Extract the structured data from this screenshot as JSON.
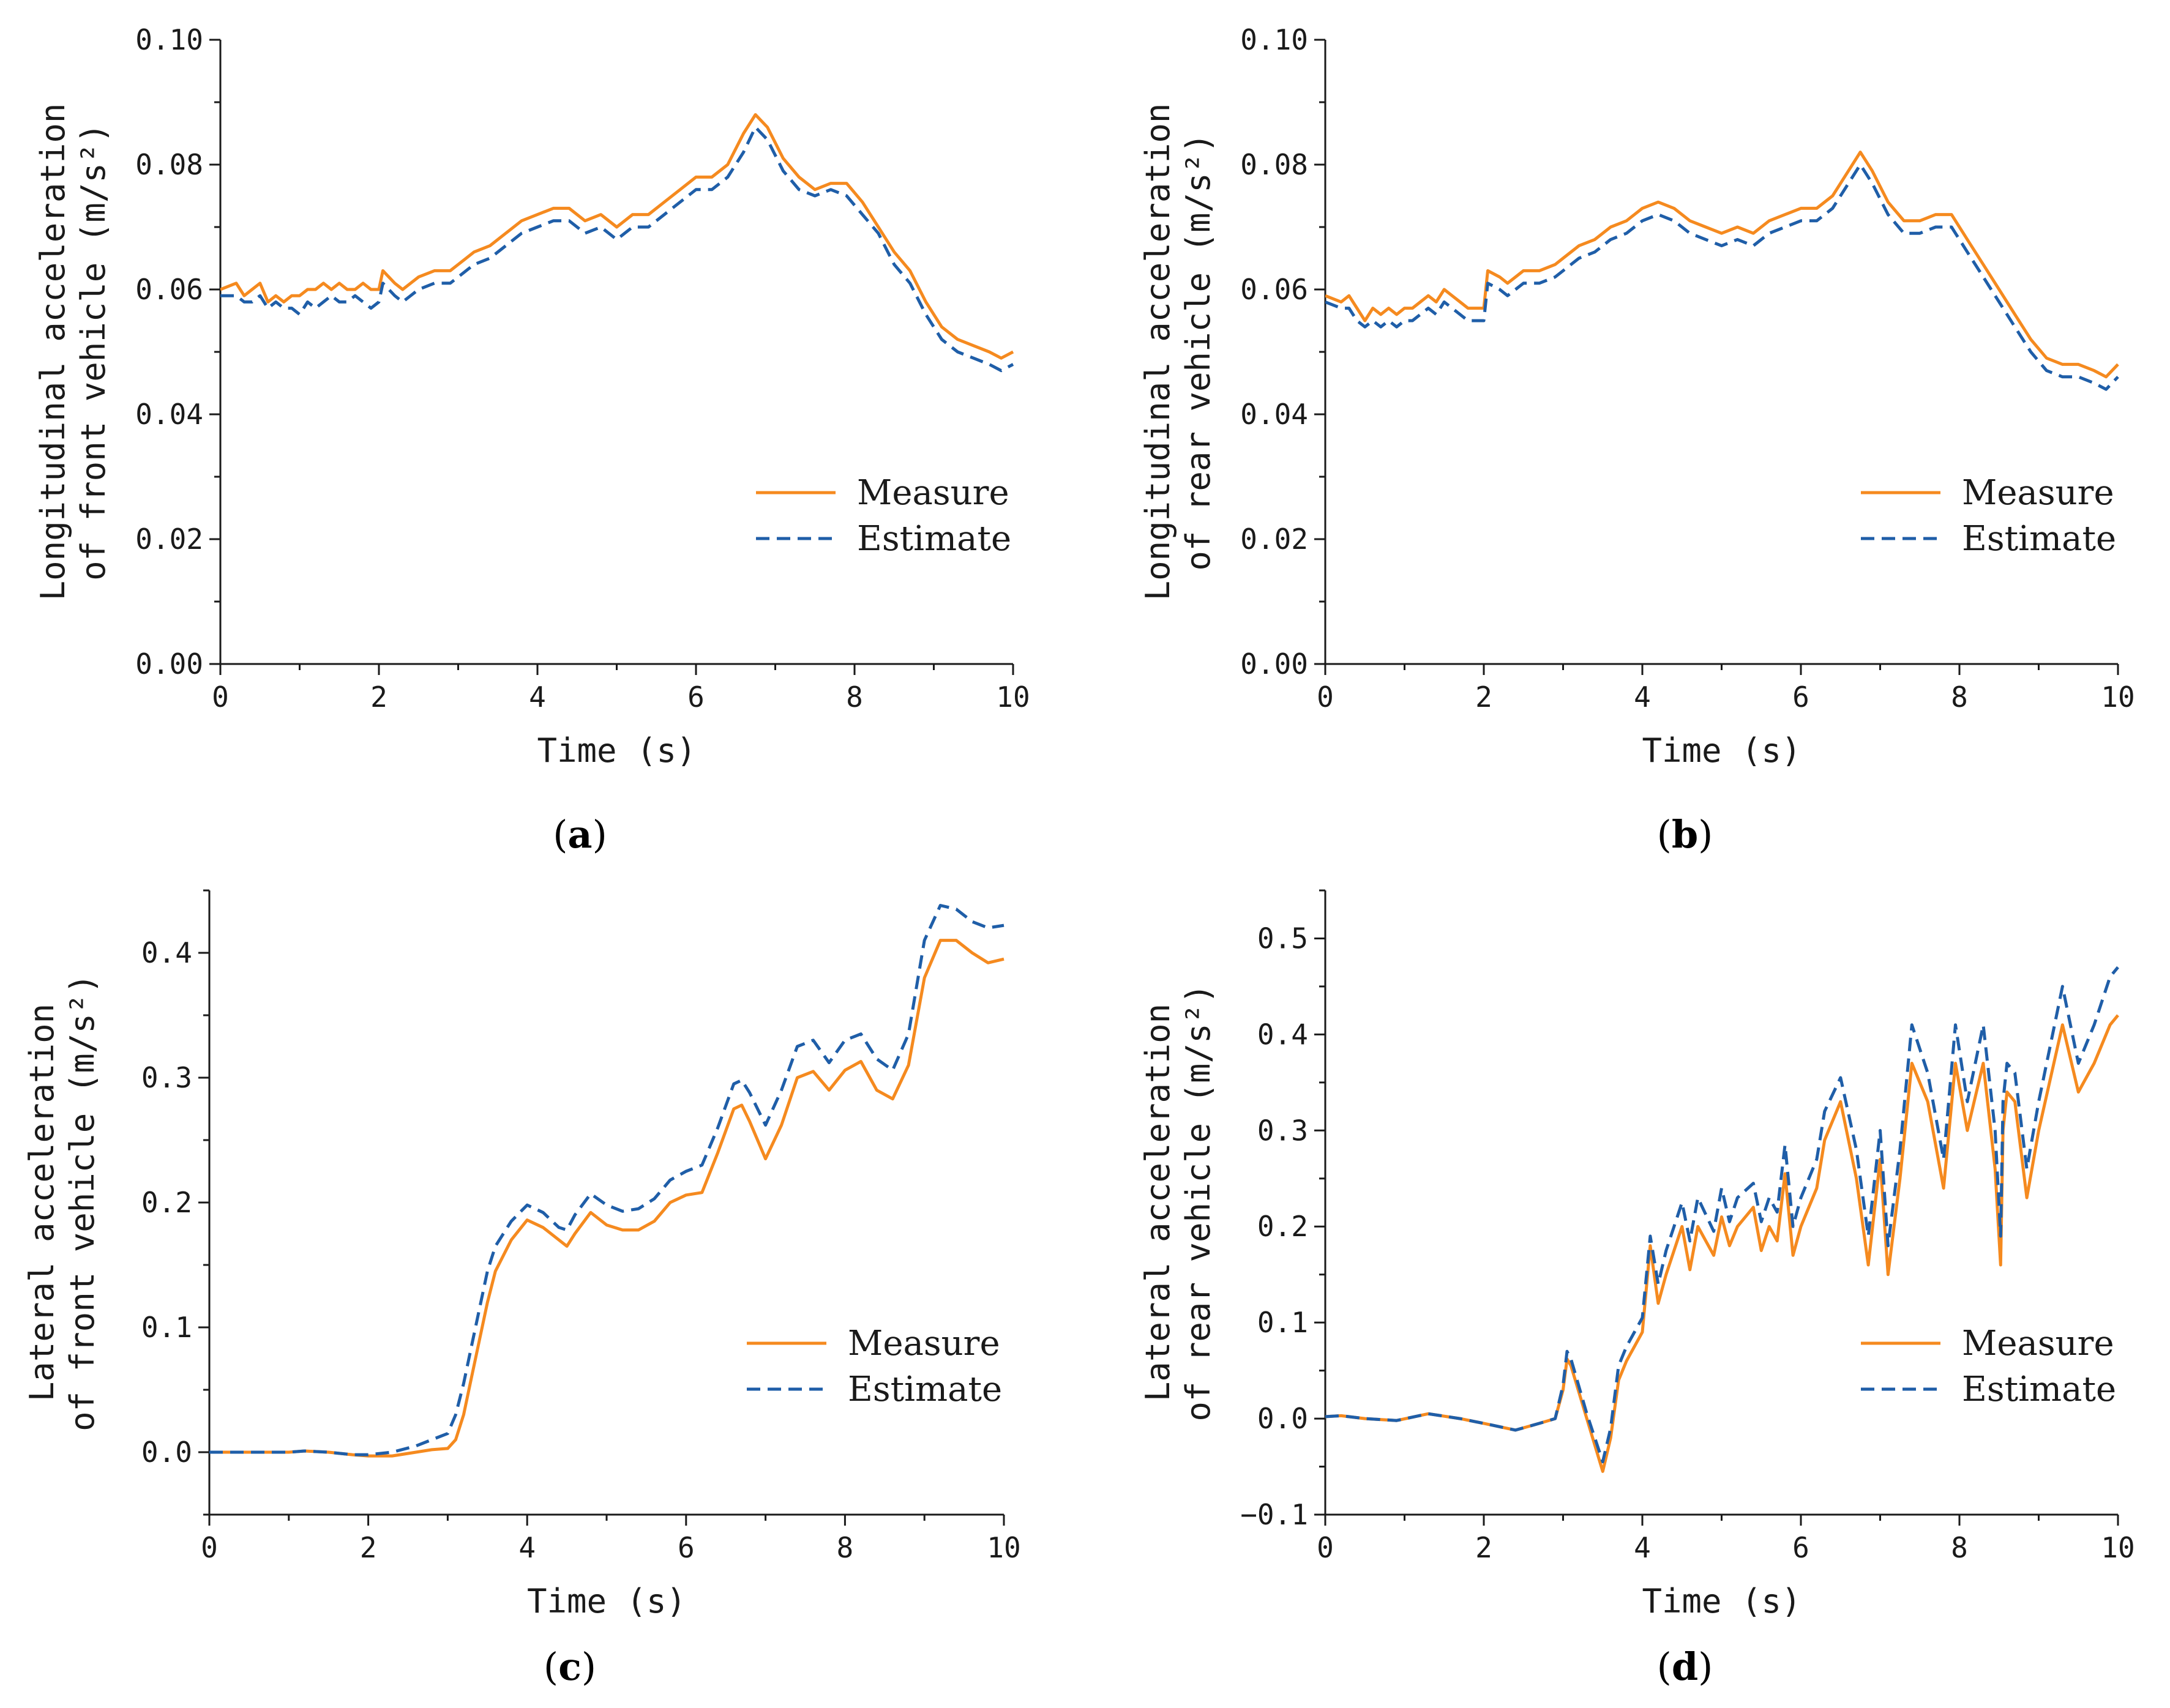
{
  "figure": {
    "colors": {
      "measure": "#f58a1f",
      "estimate": "#1f5ea8",
      "axis": "#1a1a1a"
    }
  },
  "chart_data": [
    {
      "id": "a",
      "type": "line",
      "panel_label": "a",
      "xlabel": "Time (s)",
      "ylabel_lines": [
        "Longitudinal acceleration",
        "of front vehicle (m/s²)"
      ],
      "xlim": [
        0,
        10
      ],
      "ylim": [
        0,
        0.1
      ],
      "xticks": [
        0,
        2,
        4,
        6,
        8,
        10
      ],
      "xtick_labels": [
        "0",
        "2",
        "4",
        "6",
        "8",
        "10"
      ],
      "yticks": [
        0,
        0.02,
        0.04,
        0.06,
        0.08,
        0.1
      ],
      "ytick_labels": [
        "0.00",
        "0.02",
        "0.04",
        "0.06",
        "0.08",
        "0.10"
      ],
      "legend": {
        "position": "lower-right",
        "entries": [
          "Measure",
          "Estimate"
        ]
      },
      "x": [
        0,
        0.2,
        0.3,
        0.4,
        0.5,
        0.6,
        0.7,
        0.8,
        0.9,
        1.0,
        1.1,
        1.2,
        1.3,
        1.4,
        1.5,
        1.6,
        1.7,
        1.8,
        1.9,
        2.0,
        2.05,
        2.2,
        2.3,
        2.4,
        2.5,
        2.7,
        2.9,
        3.0,
        3.2,
        3.4,
        3.6,
        3.8,
        4.0,
        4.2,
        4.4,
        4.6,
        4.8,
        5.0,
        5.2,
        5.4,
        5.6,
        5.8,
        6.0,
        6.2,
        6.4,
        6.6,
        6.75,
        6.9,
        7.1,
        7.3,
        7.5,
        7.7,
        7.9,
        8.1,
        8.3,
        8.5,
        8.7,
        8.9,
        9.1,
        9.3,
        9.5,
        9.7,
        9.85,
        10.0
      ],
      "series": [
        {
          "name": "Measure",
          "values": [
            0.06,
            0.061,
            0.059,
            0.06,
            0.061,
            0.058,
            0.059,
            0.058,
            0.059,
            0.059,
            0.06,
            0.06,
            0.061,
            0.06,
            0.061,
            0.06,
            0.06,
            0.061,
            0.06,
            0.06,
            0.063,
            0.061,
            0.06,
            0.061,
            0.062,
            0.063,
            0.063,
            0.064,
            0.066,
            0.067,
            0.069,
            0.071,
            0.072,
            0.073,
            0.073,
            0.071,
            0.072,
            0.07,
            0.072,
            0.072,
            0.074,
            0.076,
            0.078,
            0.078,
            0.08,
            0.085,
            0.088,
            0.086,
            0.081,
            0.078,
            0.076,
            0.077,
            0.077,
            0.074,
            0.07,
            0.066,
            0.063,
            0.058,
            0.054,
            0.052,
            0.051,
            0.05,
            0.049,
            0.05
          ]
        },
        {
          "name": "Estimate",
          "values": [
            0.059,
            0.059,
            0.058,
            0.058,
            0.059,
            0.057,
            0.058,
            0.057,
            0.057,
            0.056,
            0.058,
            0.057,
            0.058,
            0.059,
            0.058,
            0.058,
            0.059,
            0.058,
            0.057,
            0.058,
            0.061,
            0.059,
            0.058,
            0.059,
            0.06,
            0.061,
            0.061,
            0.062,
            0.064,
            0.065,
            0.067,
            0.069,
            0.07,
            0.071,
            0.071,
            0.069,
            0.07,
            0.068,
            0.07,
            0.07,
            0.072,
            0.074,
            0.076,
            0.076,
            0.078,
            0.082,
            0.086,
            0.084,
            0.079,
            0.076,
            0.075,
            0.076,
            0.075,
            0.072,
            0.069,
            0.064,
            0.061,
            0.056,
            0.052,
            0.05,
            0.049,
            0.048,
            0.047,
            0.048
          ]
        }
      ]
    },
    {
      "id": "b",
      "type": "line",
      "panel_label": "b",
      "xlabel": "Time (s)",
      "ylabel_lines": [
        "Longitudinal acceleration",
        "of rear vehicle (m/s²)"
      ],
      "xlim": [
        0,
        10
      ],
      "ylim": [
        0,
        0.1
      ],
      "xticks": [
        0,
        2,
        4,
        6,
        8,
        10
      ],
      "xtick_labels": [
        "0",
        "2",
        "4",
        "6",
        "8",
        "10"
      ],
      "yticks": [
        0,
        0.02,
        0.04,
        0.06,
        0.08,
        0.1
      ],
      "ytick_labels": [
        "0.00",
        "0.02",
        "0.04",
        "0.06",
        "0.08",
        "0.10"
      ],
      "legend": {
        "position": "lower-right",
        "entries": [
          "Measure",
          "Estimate"
        ]
      },
      "x": [
        0,
        0.2,
        0.3,
        0.4,
        0.5,
        0.6,
        0.7,
        0.8,
        0.9,
        1.0,
        1.1,
        1.2,
        1.3,
        1.4,
        1.5,
        1.6,
        1.7,
        1.8,
        1.9,
        2.0,
        2.05,
        2.2,
        2.3,
        2.4,
        2.5,
        2.7,
        2.9,
        3.0,
        3.2,
        3.4,
        3.6,
        3.8,
        4.0,
        4.2,
        4.4,
        4.6,
        4.8,
        5.0,
        5.2,
        5.4,
        5.6,
        5.8,
        6.0,
        6.2,
        6.4,
        6.6,
        6.75,
        6.9,
        7.1,
        7.3,
        7.5,
        7.7,
        7.9,
        8.1,
        8.3,
        8.5,
        8.7,
        8.9,
        9.1,
        9.3,
        9.5,
        9.7,
        9.85,
        10.0
      ],
      "series": [
        {
          "name": "Measure",
          "values": [
            0.059,
            0.058,
            0.059,
            0.057,
            0.055,
            0.057,
            0.056,
            0.057,
            0.056,
            0.057,
            0.057,
            0.058,
            0.059,
            0.058,
            0.06,
            0.059,
            0.058,
            0.057,
            0.057,
            0.057,
            0.063,
            0.062,
            0.061,
            0.062,
            0.063,
            0.063,
            0.064,
            0.065,
            0.067,
            0.068,
            0.07,
            0.071,
            0.073,
            0.074,
            0.073,
            0.071,
            0.07,
            0.069,
            0.07,
            0.069,
            0.071,
            0.072,
            0.073,
            0.073,
            0.075,
            0.079,
            0.082,
            0.079,
            0.074,
            0.071,
            0.071,
            0.072,
            0.072,
            0.068,
            0.064,
            0.06,
            0.056,
            0.052,
            0.049,
            0.048,
            0.048,
            0.047,
            0.046,
            0.048
          ]
        },
        {
          "name": "Estimate",
          "values": [
            0.058,
            0.057,
            0.057,
            0.055,
            0.054,
            0.055,
            0.054,
            0.055,
            0.054,
            0.055,
            0.055,
            0.056,
            0.057,
            0.056,
            0.058,
            0.057,
            0.056,
            0.055,
            0.055,
            0.055,
            0.061,
            0.06,
            0.059,
            0.06,
            0.061,
            0.061,
            0.062,
            0.063,
            0.065,
            0.066,
            0.068,
            0.069,
            0.071,
            0.072,
            0.071,
            0.069,
            0.068,
            0.067,
            0.068,
            0.067,
            0.069,
            0.07,
            0.071,
            0.071,
            0.073,
            0.077,
            0.08,
            0.077,
            0.072,
            0.069,
            0.069,
            0.07,
            0.07,
            0.066,
            0.062,
            0.058,
            0.054,
            0.05,
            0.047,
            0.046,
            0.046,
            0.045,
            0.044,
            0.046
          ]
        }
      ]
    },
    {
      "id": "c",
      "type": "line",
      "panel_label": "c",
      "xlabel": "Time (s)",
      "ylabel_lines": [
        "Lateral acceleration",
        "of front vehicle (m/s²)"
      ],
      "xlim": [
        0,
        10
      ],
      "ylim": [
        -0.05,
        0.45
      ],
      "xticks": [
        0,
        2,
        4,
        6,
        8,
        10
      ],
      "xtick_labels": [
        "0",
        "2",
        "4",
        "6",
        "8",
        "10"
      ],
      "yticks": [
        0,
        0.1,
        0.2,
        0.3,
        0.4
      ],
      "ytick_labels": [
        "0.0",
        "0.1",
        "0.2",
        "0.3",
        "0.4"
      ],
      "legend": {
        "position": "lower-right",
        "entries": [
          "Measure",
          "Estimate"
        ]
      },
      "x": [
        0,
        0.5,
        1.0,
        1.2,
        1.5,
        1.8,
        2.0,
        2.3,
        2.6,
        2.8,
        3.0,
        3.1,
        3.2,
        3.3,
        3.4,
        3.5,
        3.6,
        3.8,
        4.0,
        4.2,
        4.4,
        4.5,
        4.6,
        4.8,
        5.0,
        5.2,
        5.4,
        5.6,
        5.8,
        6.0,
        6.2,
        6.4,
        6.6,
        6.7,
        6.8,
        7.0,
        7.2,
        7.4,
        7.6,
        7.8,
        8.0,
        8.2,
        8.4,
        8.6,
        8.8,
        9.0,
        9.2,
        9.4,
        9.6,
        9.8,
        10.0
      ],
      "series": [
        {
          "name": "Measure",
          "values": [
            0.0,
            0.0,
            0.0,
            0.001,
            0.0,
            -0.002,
            -0.003,
            -0.003,
            0.0,
            0.002,
            0.003,
            0.01,
            0.03,
            0.06,
            0.09,
            0.12,
            0.145,
            0.17,
            0.186,
            0.18,
            0.17,
            0.165,
            0.175,
            0.192,
            0.182,
            0.178,
            0.178,
            0.185,
            0.2,
            0.206,
            0.208,
            0.24,
            0.275,
            0.278,
            0.265,
            0.235,
            0.262,
            0.3,
            0.305,
            0.29,
            0.306,
            0.313,
            0.29,
            0.283,
            0.31,
            0.38,
            0.41,
            0.41,
            0.4,
            0.392,
            0.395
          ]
        },
        {
          "name": "Estimate",
          "values": [
            0.0,
            0.0,
            0.0,
            0.001,
            0.0,
            -0.002,
            -0.002,
            0.0,
            0.005,
            0.01,
            0.015,
            0.03,
            0.055,
            0.085,
            0.115,
            0.145,
            0.165,
            0.185,
            0.198,
            0.192,
            0.18,
            0.178,
            0.19,
            0.207,
            0.198,
            0.193,
            0.195,
            0.203,
            0.218,
            0.225,
            0.23,
            0.26,
            0.295,
            0.298,
            0.288,
            0.262,
            0.29,
            0.325,
            0.33,
            0.312,
            0.33,
            0.335,
            0.315,
            0.306,
            0.335,
            0.41,
            0.438,
            0.435,
            0.425,
            0.42,
            0.422
          ]
        }
      ]
    },
    {
      "id": "d",
      "type": "line",
      "panel_label": "d",
      "xlabel": "Time (s)",
      "ylabel_lines": [
        "Lateral acceleration",
        "of rear vehicle (m/s²)"
      ],
      "xlim": [
        0,
        10
      ],
      "ylim": [
        -0.1,
        0.55
      ],
      "xticks": [
        0,
        2,
        4,
        6,
        8,
        10
      ],
      "xtick_labels": [
        "0",
        "2",
        "4",
        "6",
        "8",
        "10"
      ],
      "yticks": [
        -0.1,
        0,
        0.1,
        0.2,
        0.3,
        0.4,
        0.5
      ],
      "ytick_labels": [
        "−0.1",
        "0.0",
        "0.1",
        "0.2",
        "0.3",
        "0.4",
        "0.5"
      ],
      "legend": {
        "position": "lower-right",
        "entries": [
          "Measure",
          "Estimate"
        ]
      },
      "x": [
        0,
        0.2,
        0.5,
        0.9,
        1.3,
        1.7,
        2.0,
        2.4,
        2.7,
        2.9,
        3.0,
        3.05,
        3.1,
        3.3,
        3.5,
        3.6,
        3.7,
        3.8,
        4.0,
        4.1,
        4.2,
        4.3,
        4.5,
        4.6,
        4.7,
        4.9,
        5.0,
        5.1,
        5.2,
        5.4,
        5.5,
        5.6,
        5.7,
        5.8,
        5.9,
        6.0,
        6.2,
        6.3,
        6.5,
        6.7,
        6.85,
        7.0,
        7.1,
        7.25,
        7.4,
        7.6,
        7.8,
        7.95,
        8.1,
        8.3,
        8.45,
        8.52,
        8.55,
        8.6,
        8.7,
        8.85,
        9.0,
        9.3,
        9.5,
        9.7,
        9.9,
        10.0
      ],
      "series": [
        {
          "name": "Measure",
          "values": [
            0.002,
            0.003,
            0.0,
            -0.002,
            0.005,
            0.0,
            -0.005,
            -0.012,
            -0.005,
            0.0,
            0.03,
            0.062,
            0.055,
            0.0,
            -0.055,
            -0.02,
            0.04,
            0.06,
            0.09,
            0.18,
            0.12,
            0.15,
            0.2,
            0.155,
            0.2,
            0.17,
            0.21,
            0.18,
            0.2,
            0.22,
            0.175,
            0.2,
            0.185,
            0.255,
            0.17,
            0.2,
            0.24,
            0.29,
            0.33,
            0.25,
            0.16,
            0.27,
            0.15,
            0.25,
            0.37,
            0.33,
            0.24,
            0.37,
            0.3,
            0.37,
            0.26,
            0.16,
            0.3,
            0.34,
            0.33,
            0.23,
            0.3,
            0.41,
            0.34,
            0.37,
            0.41,
            0.42
          ]
        },
        {
          "name": "Estimate",
          "values": [
            0.002,
            0.003,
            0.0,
            -0.002,
            0.005,
            0.0,
            -0.005,
            -0.012,
            -0.005,
            0.0,
            0.035,
            0.07,
            0.062,
            0.005,
            -0.045,
            -0.01,
            0.055,
            0.075,
            0.105,
            0.19,
            0.14,
            0.175,
            0.225,
            0.185,
            0.23,
            0.195,
            0.24,
            0.205,
            0.23,
            0.245,
            0.205,
            0.23,
            0.215,
            0.285,
            0.2,
            0.23,
            0.27,
            0.32,
            0.355,
            0.28,
            0.19,
            0.3,
            0.18,
            0.28,
            0.41,
            0.36,
            0.27,
            0.41,
            0.33,
            0.41,
            0.3,
            0.19,
            0.33,
            0.37,
            0.36,
            0.26,
            0.33,
            0.45,
            0.37,
            0.41,
            0.46,
            0.47
          ]
        }
      ]
    }
  ]
}
